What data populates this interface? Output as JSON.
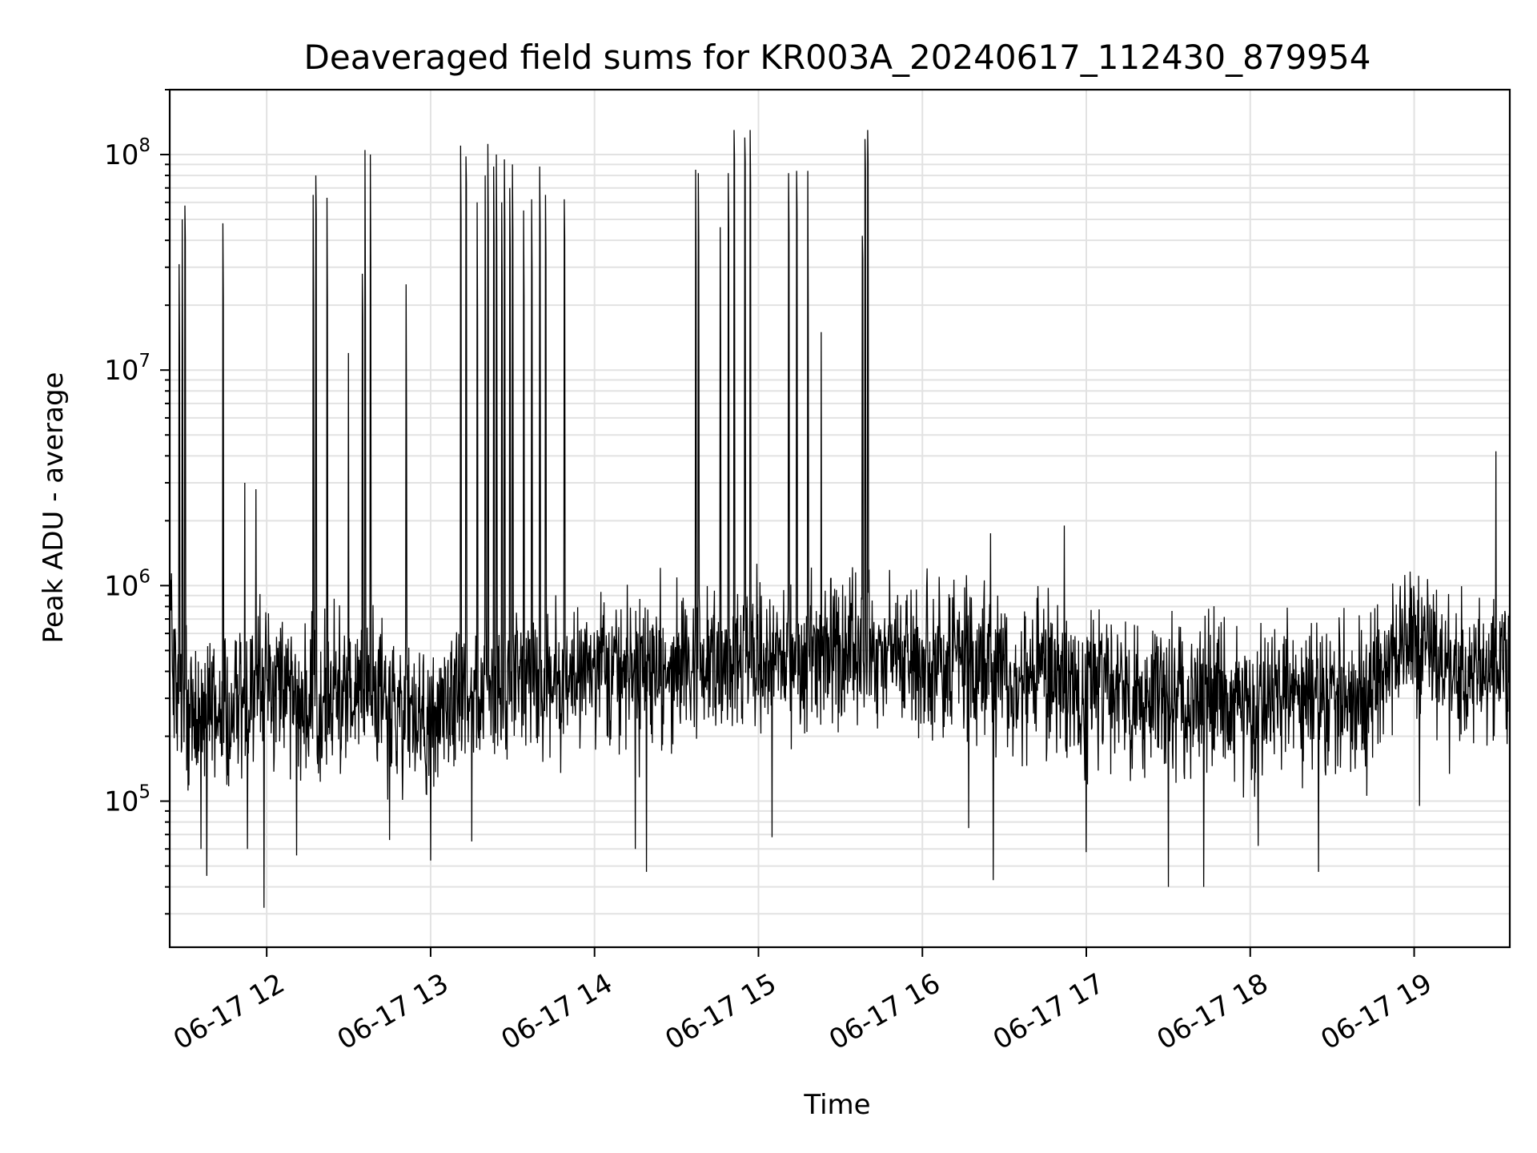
{
  "chart_data": {
    "type": "line",
    "title": "Deaveraged field sums for KR003A_20240617_112430_879954",
    "xlabel": "Time",
    "ylabel": "Peak ADU - average",
    "xlim": [
      "2024-06-17T11:24:30",
      "2024-06-17T19:35:00"
    ],
    "ylim": [
      21000,
      200000000
    ],
    "y_scale": "log",
    "grid": true,
    "grid_minor": true,
    "x_ticks": [
      {
        "value": "2024-06-17T12:00",
        "label": "06-17 12"
      },
      {
        "value": "2024-06-17T13:00",
        "label": "06-17 13"
      },
      {
        "value": "2024-06-17T14:00",
        "label": "06-17 14"
      },
      {
        "value": "2024-06-17T15:00",
        "label": "06-17 15"
      },
      {
        "value": "2024-06-17T16:00",
        "label": "06-17 16"
      },
      {
        "value": "2024-06-17T17:00",
        "label": "06-17 17"
      },
      {
        "value": "2024-06-17T18:00",
        "label": "06-17 18"
      },
      {
        "value": "2024-06-17T19:00",
        "label": "06-17 19"
      }
    ],
    "y_ticks": [
      {
        "value": 100000,
        "base": "10",
        "exp": "5"
      },
      {
        "value": 1000000,
        "base": "10",
        "exp": "6"
      },
      {
        "value": 10000000,
        "base": "10",
        "exp": "7"
      },
      {
        "value": 100000000,
        "base": "10",
        "exp": "8"
      }
    ],
    "baseline": [
      [
        "2024-06-17T11:24:30",
        550000
      ],
      [
        "2024-06-17T11:30",
        270000
      ],
      [
        "2024-06-17T11:45",
        260000
      ],
      [
        "2024-06-17T12:00",
        380000
      ],
      [
        "2024-06-17T12:05",
        420000
      ],
      [
        "2024-06-17T12:15",
        250000
      ],
      [
        "2024-06-17T12:30",
        320000
      ],
      [
        "2024-06-17T12:45",
        280000
      ],
      [
        "2024-06-17T12:55",
        230000
      ],
      [
        "2024-06-17T13:00",
        240000
      ],
      [
        "2024-06-17T13:10",
        310000
      ],
      [
        "2024-06-17T13:30",
        350000
      ],
      [
        "2024-06-17T13:50",
        380000
      ],
      [
        "2024-06-17T14:00",
        440000
      ],
      [
        "2024-06-17T14:15",
        400000
      ],
      [
        "2024-06-17T14:30",
        420000
      ],
      [
        "2024-06-17T14:45",
        450000
      ],
      [
        "2024-06-17T15:00",
        440000
      ],
      [
        "2024-06-17T15:15",
        450000
      ],
      [
        "2024-06-17T15:30",
        500000
      ],
      [
        "2024-06-17T15:45",
        460000
      ],
      [
        "2024-06-17T16:00",
        460000
      ],
      [
        "2024-06-17T16:15",
        440000
      ],
      [
        "2024-06-17T16:30",
        400000
      ],
      [
        "2024-06-17T16:45",
        360000
      ],
      [
        "2024-06-17T17:00",
        330000
      ],
      [
        "2024-06-17T17:15",
        300000
      ],
      [
        "2024-06-17T17:30",
        290000
      ],
      [
        "2024-06-17T17:45",
        300000
      ],
      [
        "2024-06-17T18:00",
        280000
      ],
      [
        "2024-06-17T18:15",
        300000
      ],
      [
        "2024-06-17T18:30",
        320000
      ],
      [
        "2024-06-17T18:40",
        280000
      ],
      [
        "2024-06-17T18:45",
        350000
      ],
      [
        "2024-06-17T18:55",
        480000
      ],
      [
        "2024-06-17T19:05",
        580000
      ],
      [
        "2024-06-17T19:12",
        400000
      ],
      [
        "2024-06-17T19:20",
        380000
      ],
      [
        "2024-06-17T19:35",
        420000
      ]
    ],
    "spikes": [
      [
        "2024-06-17T11:28",
        31000000
      ],
      [
        "2024-06-17T11:29",
        50000000
      ],
      [
        "2024-06-17T11:30",
        58000000
      ],
      [
        "2024-06-17T11:44",
        48000000
      ],
      [
        "2024-06-17T11:52",
        3000000
      ],
      [
        "2024-06-17T11:56",
        2800000
      ],
      [
        "2024-06-17T12:17",
        65000000
      ],
      [
        "2024-06-17T12:18",
        80000000
      ],
      [
        "2024-06-17T12:22",
        63000000
      ],
      [
        "2024-06-17T12:30",
        12000000
      ],
      [
        "2024-06-17T12:35",
        28000000
      ],
      [
        "2024-06-17T12:36",
        105000000
      ],
      [
        "2024-06-17T12:38",
        100000000
      ],
      [
        "2024-06-17T12:51",
        25000000
      ],
      [
        "2024-06-17T13:11",
        110000000
      ],
      [
        "2024-06-17T13:13",
        98000000
      ],
      [
        "2024-06-17T13:17",
        60000000
      ],
      [
        "2024-06-17T13:20",
        80000000
      ],
      [
        "2024-06-17T13:21",
        112000000
      ],
      [
        "2024-06-17T13:23",
        88000000
      ],
      [
        "2024-06-17T13:24",
        100000000
      ],
      [
        "2024-06-17T13:26",
        60000000
      ],
      [
        "2024-06-17T13:27",
        95000000
      ],
      [
        "2024-06-17T13:29",
        70000000
      ],
      [
        "2024-06-17T13:30",
        90000000
      ],
      [
        "2024-06-17T13:34",
        55000000
      ],
      [
        "2024-06-17T13:37",
        62000000
      ],
      [
        "2024-06-17T13:40",
        88000000
      ],
      [
        "2024-06-17T13:42",
        65000000
      ],
      [
        "2024-06-17T13:49",
        62000000
      ],
      [
        "2024-06-17T14:37",
        85000000
      ],
      [
        "2024-06-17T14:38",
        82000000
      ],
      [
        "2024-06-17T14:46",
        46000000
      ],
      [
        "2024-06-17T14:49",
        82000000
      ],
      [
        "2024-06-17T14:51",
        130000000
      ],
      [
        "2024-06-17T14:55",
        120000000
      ],
      [
        "2024-06-17T14:57",
        130000000
      ],
      [
        "2024-06-17T15:11",
        82000000
      ],
      [
        "2024-06-17T15:14",
        84000000
      ],
      [
        "2024-06-17T15:18",
        84000000
      ],
      [
        "2024-06-17T15:23",
        15000000
      ],
      [
        "2024-06-17T15:38",
        42000000
      ],
      [
        "2024-06-17T15:39",
        118000000
      ],
      [
        "2024-06-17T15:40",
        130000000
      ],
      [
        "2024-06-17T16:25",
        1750000
      ],
      [
        "2024-06-17T16:52",
        1900000
      ],
      [
        "2024-06-17T19:30",
        4200000
      ]
    ],
    "dips": [
      [
        "2024-06-17T11:36",
        60000
      ],
      [
        "2024-06-17T11:38",
        45000
      ],
      [
        "2024-06-17T11:53",
        60000
      ],
      [
        "2024-06-17T11:59",
        32000
      ],
      [
        "2024-06-17T12:11",
        56000
      ],
      [
        "2024-06-17T12:45",
        66000
      ],
      [
        "2024-06-17T13:00",
        53000
      ],
      [
        "2024-06-17T13:15",
        65000
      ],
      [
        "2024-06-17T14:15",
        60000
      ],
      [
        "2024-06-17T14:19",
        47000
      ],
      [
        "2024-06-17T15:05",
        68000
      ],
      [
        "2024-06-17T16:17",
        75000
      ],
      [
        "2024-06-17T16:26",
        43000
      ],
      [
        "2024-06-17T17:00",
        58000
      ],
      [
        "2024-06-17T17:30",
        40000
      ],
      [
        "2024-06-17T17:43",
        40000
      ],
      [
        "2024-06-17T18:03",
        62000
      ],
      [
        "2024-06-17T18:25",
        47000
      ],
      [
        "2024-06-17T19:02",
        95000
      ]
    ],
    "series": [
      {
        "color": "#000000"
      }
    ]
  }
}
